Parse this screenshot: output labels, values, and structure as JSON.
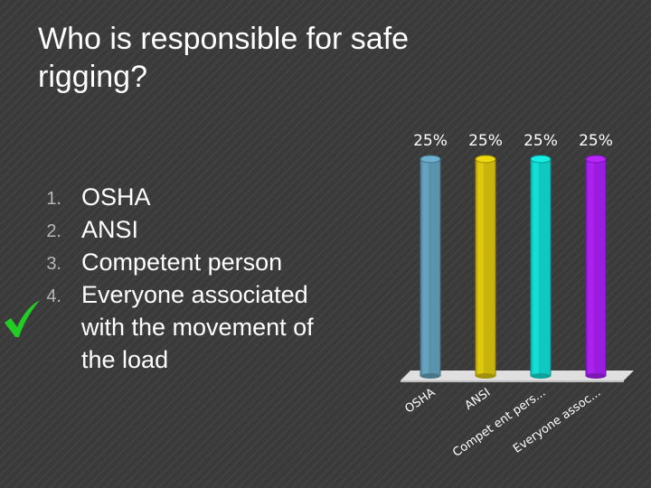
{
  "slide": {
    "title": "Who is responsible for safe rigging?",
    "answers": [
      {
        "number": "1.",
        "text": "OSHA"
      },
      {
        "number": "2.",
        "text": "ANSI"
      },
      {
        "number": "3.",
        "text": "Competent person"
      },
      {
        "number": "4.",
        "text": "Everyone associated with the movement of the load"
      }
    ],
    "correct_answer_marker": "check-icon",
    "check_color": "#22cc22"
  },
  "chart_data": {
    "type": "bar",
    "categories": [
      "OSHA",
      "ANSI",
      "Compet ent pers...",
      "Everyone assoc..."
    ],
    "values": [
      25,
      25,
      25,
      25
    ],
    "value_labels": [
      "25%",
      "25%",
      "25%",
      "25%"
    ],
    "colors": [
      "#5b93ad",
      "#c8b40c",
      "#11c8c0",
      "#9a1ee0"
    ],
    "ylim": [
      0,
      25
    ],
    "title": "",
    "xlabel": "",
    "ylabel": "",
    "grid": false,
    "legend": "none"
  }
}
